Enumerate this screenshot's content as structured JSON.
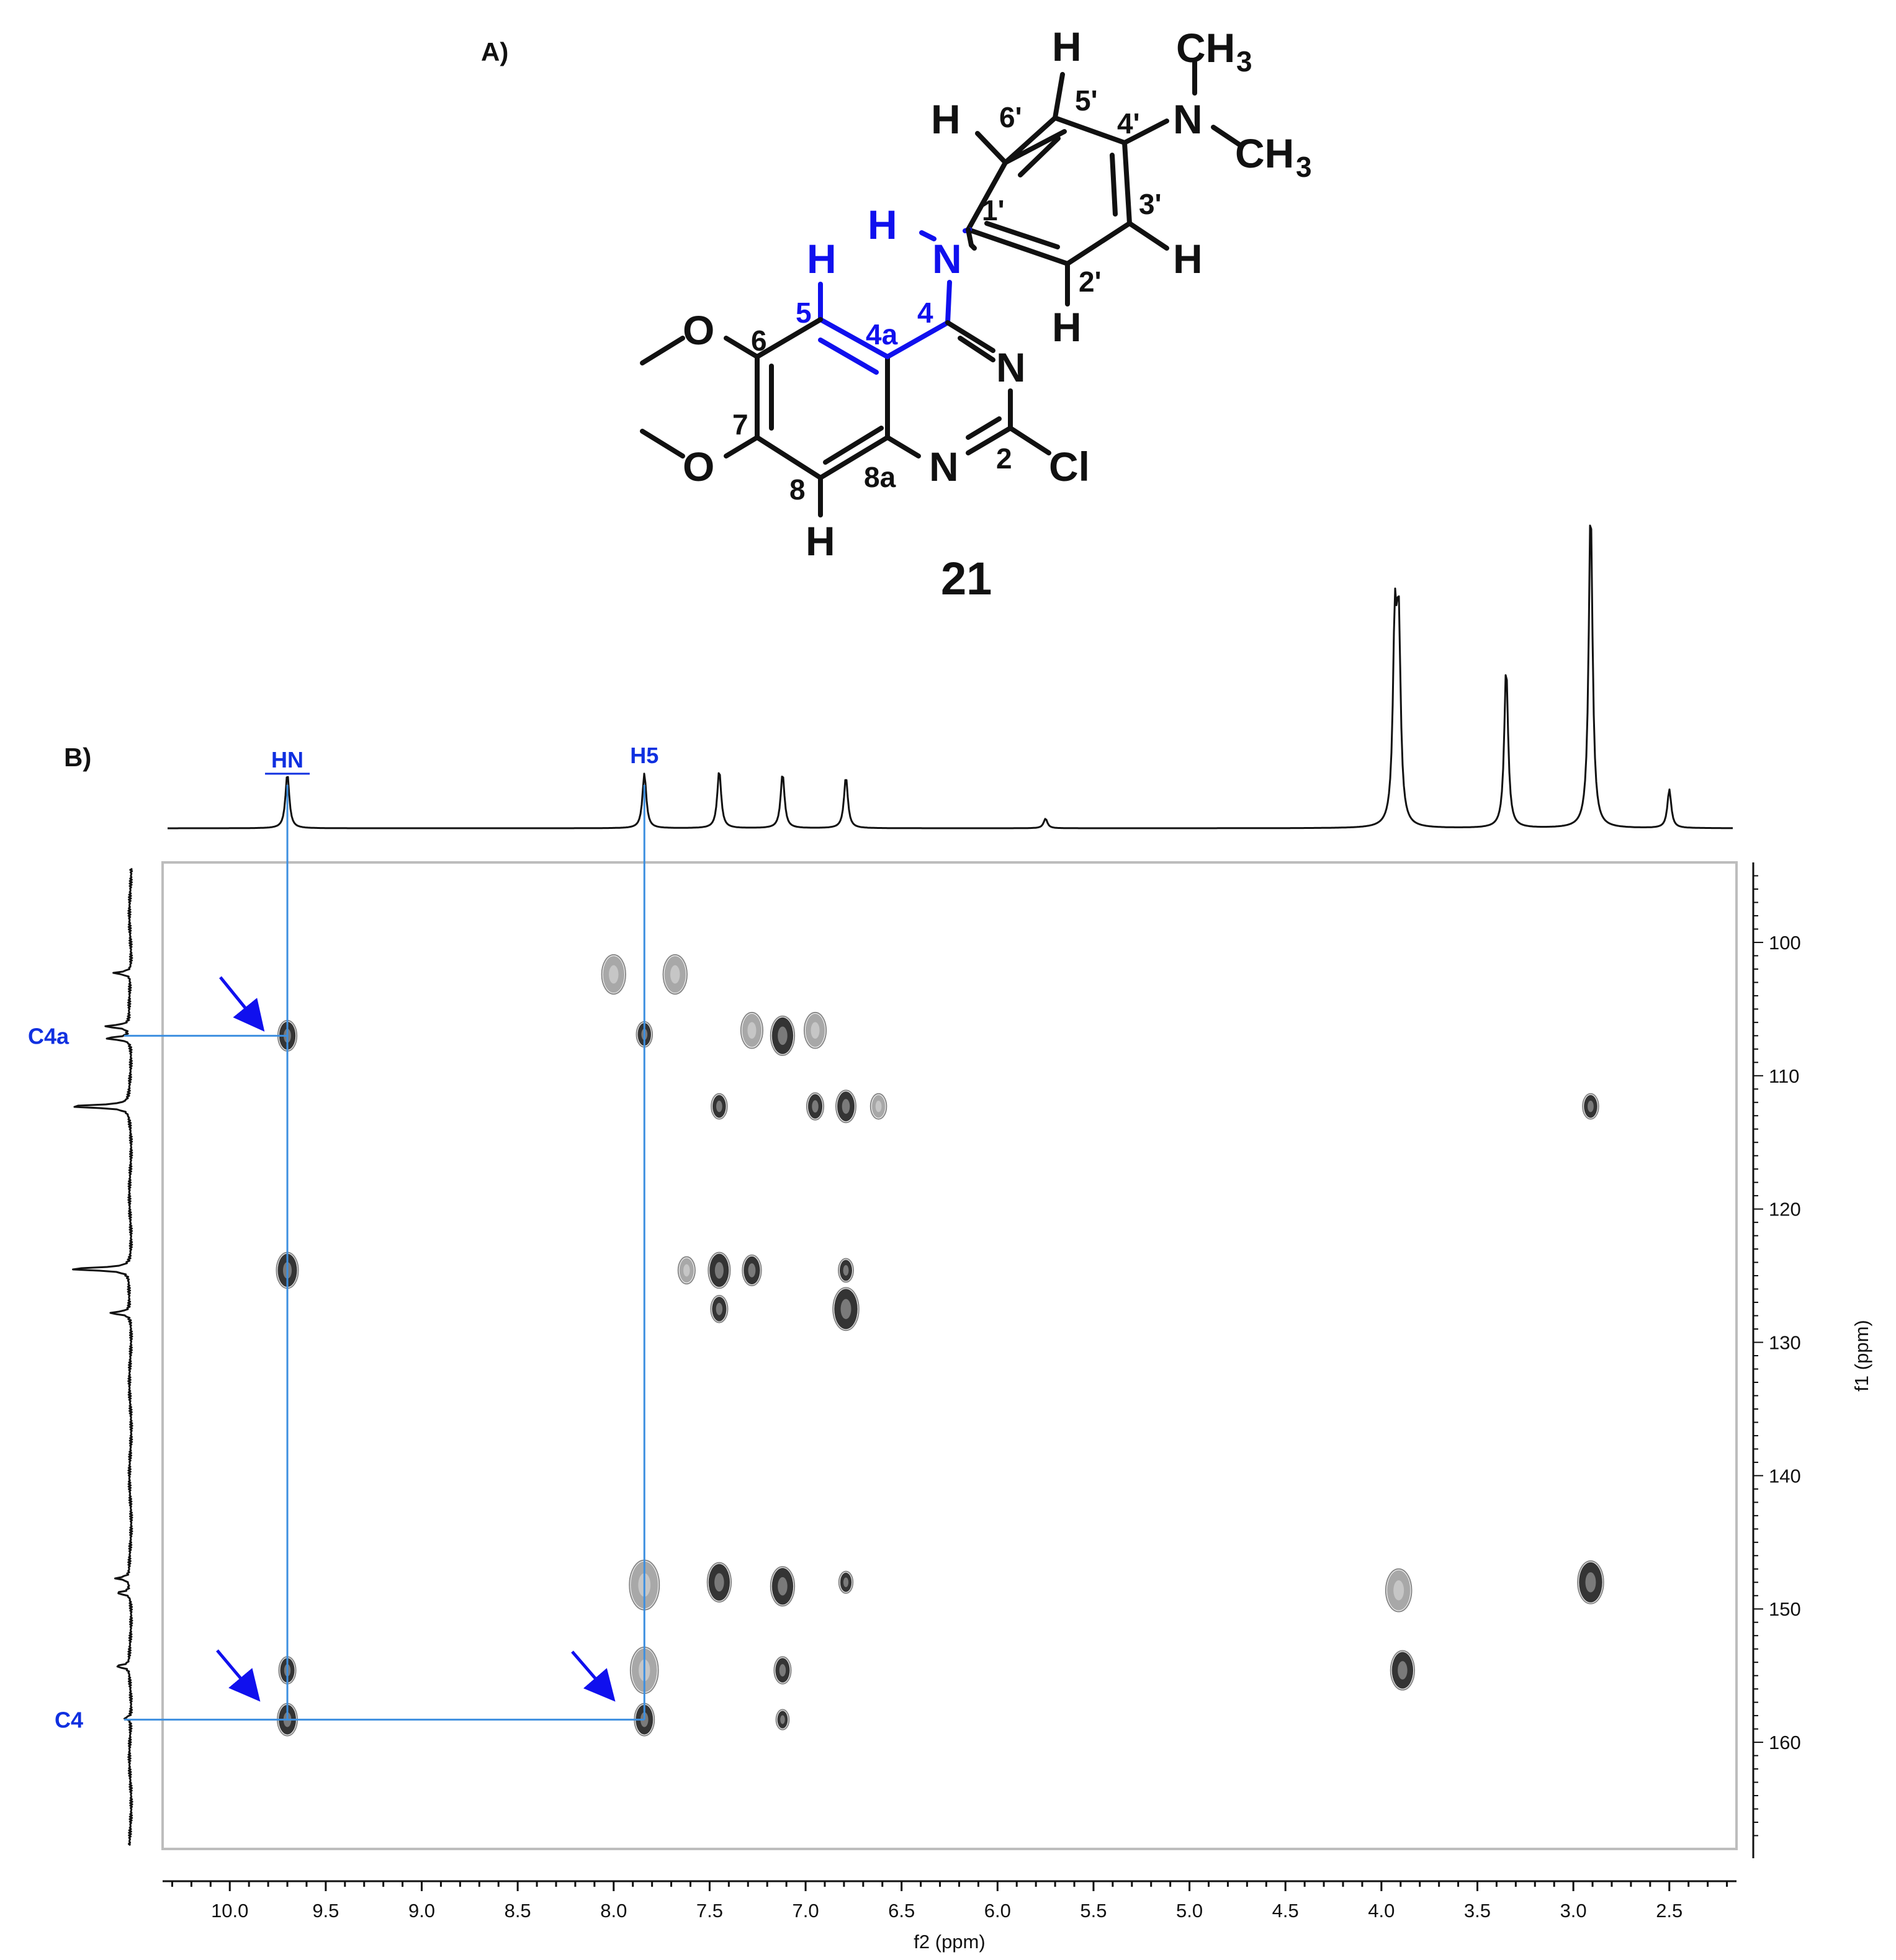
{
  "panel_a_label": "A)",
  "panel_b_label": "B)",
  "molecule": {
    "compound_number": "21",
    "atoms": {
      "H_top": "H",
      "CH3_top": "CH",
      "CH3_top_sub": "3",
      "N_dimethyl": "N",
      "CH3_right": "CH",
      "CH3_right_sub": "3",
      "H6p": "H",
      "H3p": "H",
      "H2p": "H",
      "H5": "H",
      "H_N": "H",
      "N_amine": "N",
      "O6": "O",
      "O7": "O",
      "N3": "N",
      "N1": "N",
      "Cl": "Cl",
      "H8": "H"
    },
    "numbers": {
      "n5p": "5'",
      "n6p": "6'",
      "n4p": "4'",
      "n1p": "1'",
      "n3p": "3'",
      "n2p": "2'",
      "n5": "5",
      "n4a": "4a",
      "n4": "4",
      "n6": "6",
      "n7": "7",
      "n2": "2",
      "n8": "8",
      "n8a": "8a"
    },
    "colors": {
      "highlight": "#1010ee",
      "default": "#111111"
    }
  },
  "chart_data": {
    "type": "heatmap",
    "subtype": "2D HMBC NMR contour plot",
    "xlabel": "f2 (ppm)",
    "ylabel": "f1 (ppm)",
    "xlim": [
      10.35,
      2.15
    ],
    "ylim": [
      94,
      168
    ],
    "x_ticks": [
      "10.0",
      "9.5",
      "9.0",
      "8.5",
      "8.0",
      "7.5",
      "7.0",
      "6.5",
      "6.0",
      "5.5",
      "5.0",
      "4.5",
      "4.0",
      "3.5",
      "3.0",
      "2.5"
    ],
    "y_ticks": [
      "100",
      "110",
      "120",
      "130",
      "140",
      "150",
      "160"
    ],
    "h_spectrum_peaks": [
      {
        "ppm": 9.7,
        "height": 0.17
      },
      {
        "ppm": 7.84,
        "height": 0.17
      },
      {
        "ppm": 7.45,
        "height": 0.18
      },
      {
        "ppm": 7.12,
        "height": 0.17
      },
      {
        "ppm": 6.79,
        "height": 0.16
      },
      {
        "ppm": 5.75,
        "height": 0.03
      },
      {
        "ppm": 3.93,
        "height": 0.58
      },
      {
        "ppm": 3.91,
        "height": 0.58
      },
      {
        "ppm": 3.35,
        "height": 0.5
      },
      {
        "ppm": 2.91,
        "height": 1.0
      },
      {
        "ppm": 2.5,
        "height": 0.12
      }
    ],
    "c_spectrum_peaks": [
      {
        "ppm": 102.3,
        "height": 0.15
      },
      {
        "ppm": 106.3,
        "height": 0.22
      },
      {
        "ppm": 107.2,
        "height": 0.22
      },
      {
        "ppm": 112.3,
        "height": 0.55
      },
      {
        "ppm": 124.5,
        "height": 0.55
      },
      {
        "ppm": 127.8,
        "height": 0.18
      },
      {
        "ppm": 147.7,
        "height": 0.12
      },
      {
        "ppm": 148.8,
        "height": 0.12
      },
      {
        "ppm": 154.3,
        "height": 0.12
      },
      {
        "ppm": 158.2,
        "height": 0.06
      }
    ],
    "cross_peaks": [
      {
        "x": 8.0,
        "y": 102.4,
        "s": 1.4,
        "shade": "light"
      },
      {
        "x": 7.68,
        "y": 102.4,
        "s": 1.4,
        "shade": "light"
      },
      {
        "x": 9.7,
        "y": 107.0,
        "s": 0.9,
        "shade": "dark"
      },
      {
        "x": 7.84,
        "y": 106.9,
        "s": 0.6,
        "shade": "dark"
      },
      {
        "x": 7.28,
        "y": 106.6,
        "s": 1.2,
        "shade": "light"
      },
      {
        "x": 7.12,
        "y": 107.0,
        "s": 1.4,
        "shade": "dark"
      },
      {
        "x": 6.95,
        "y": 106.6,
        "s": 1.2,
        "shade": "light"
      },
      {
        "x": 7.45,
        "y": 112.3,
        "s": 0.6,
        "shade": "dark"
      },
      {
        "x": 6.95,
        "y": 112.3,
        "s": 0.7,
        "shade": "dark"
      },
      {
        "x": 6.79,
        "y": 112.3,
        "s": 1.0,
        "shade": "dark"
      },
      {
        "x": 6.62,
        "y": 112.3,
        "s": 0.6,
        "shade": "light"
      },
      {
        "x": 2.91,
        "y": 112.3,
        "s": 0.6,
        "shade": "dark"
      },
      {
        "x": 9.7,
        "y": 124.6,
        "s": 1.2,
        "shade": "dark"
      },
      {
        "x": 7.62,
        "y": 124.6,
        "s": 0.7,
        "shade": "light"
      },
      {
        "x": 7.45,
        "y": 124.6,
        "s": 1.2,
        "shade": "dark"
      },
      {
        "x": 7.28,
        "y": 124.6,
        "s": 0.9,
        "shade": "dark"
      },
      {
        "x": 6.79,
        "y": 124.6,
        "s": 0.5,
        "shade": "dark"
      },
      {
        "x": 7.45,
        "y": 127.5,
        "s": 0.7,
        "shade": "dark"
      },
      {
        "x": 6.79,
        "y": 127.5,
        "s": 1.6,
        "shade": "dark"
      },
      {
        "x": 7.84,
        "y": 148.2,
        "s": 2.0,
        "shade": "light"
      },
      {
        "x": 7.45,
        "y": 148.0,
        "s": 1.4,
        "shade": "dark"
      },
      {
        "x": 7.12,
        "y": 148.3,
        "s": 1.4,
        "shade": "dark"
      },
      {
        "x": 6.79,
        "y": 148.0,
        "s": 0.4,
        "shade": "dark"
      },
      {
        "x": 3.91,
        "y": 148.6,
        "s": 1.6,
        "shade": "light"
      },
      {
        "x": 2.91,
        "y": 148.0,
        "s": 1.6,
        "shade": "dark"
      },
      {
        "x": 9.7,
        "y": 154.6,
        "s": 0.7,
        "shade": "dark"
      },
      {
        "x": 7.84,
        "y": 154.6,
        "s": 1.8,
        "shade": "light"
      },
      {
        "x": 7.12,
        "y": 154.6,
        "s": 0.7,
        "shade": "dark"
      },
      {
        "x": 3.89,
        "y": 154.6,
        "s": 1.4,
        "shade": "dark"
      },
      {
        "x": 9.7,
        "y": 158.3,
        "s": 1.0,
        "shade": "dark"
      },
      {
        "x": 7.84,
        "y": 158.3,
        "s": 1.0,
        "shade": "dark"
      },
      {
        "x": 7.12,
        "y": 158.3,
        "s": 0.3,
        "shade": "dark"
      }
    ],
    "annotations": {
      "HN": {
        "label": "HN",
        "ppm": 9.7
      },
      "H5": {
        "label": "H5",
        "ppm": 7.84
      },
      "C4a": {
        "label": "C4a",
        "ppm": 107.0
      },
      "C4": {
        "label": "C4",
        "ppm": 158.3
      }
    }
  }
}
